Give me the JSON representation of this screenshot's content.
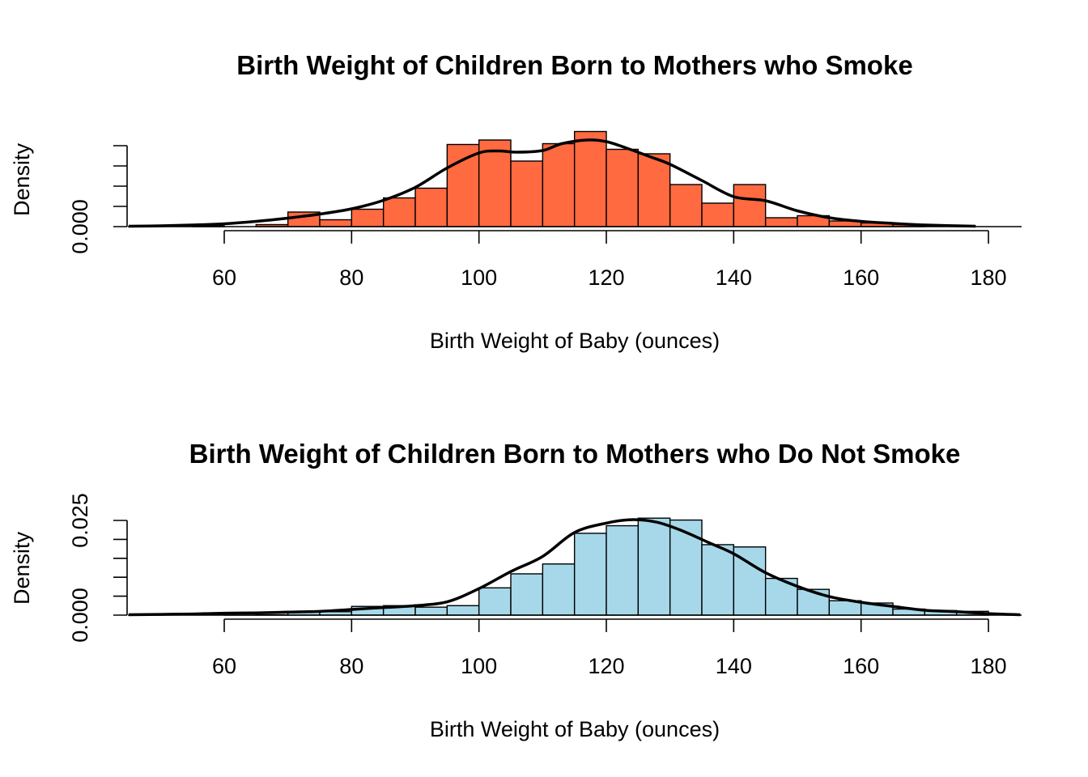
{
  "chart_data": [
    {
      "type": "bar",
      "title": "Birth Weight of Children Born to Mothers who Smoke",
      "xlabel": "Birth Weight of Baby (ounces)",
      "ylabel": "Density",
      "fill_color": "#FF6A40",
      "x_ticks": [
        60,
        80,
        100,
        120,
        140,
        160,
        180
      ],
      "y_tick_labels": [
        "0.000"
      ],
      "y_ticks": [
        0,
        0.005,
        0.01,
        0.015,
        0.02
      ],
      "xlim": [
        45,
        180
      ],
      "ylim": [
        0,
        0.02
      ],
      "bin_edges": [
        55,
        60,
        65,
        70,
        75,
        80,
        85,
        90,
        95,
        100,
        105,
        110,
        115,
        120,
        125,
        130,
        135,
        140,
        145,
        150,
        155,
        160,
        165,
        170,
        175
      ],
      "values": [
        0.0002,
        0,
        0.0005,
        0.0036,
        0.0017,
        0.0043,
        0.0071,
        0.0095,
        0.0203,
        0.0214,
        0.0162,
        0.0205,
        0.0235,
        0.0191,
        0.018,
        0.0104,
        0.0058,
        0.0104,
        0.0022,
        0.0027,
        0.0014,
        0.0009,
        0.0005,
        0,
        0.0002
      ],
      "density": {
        "x": [
          45,
          50,
          55,
          60,
          65,
          70,
          75,
          80,
          85,
          90,
          95,
          100,
          103,
          106,
          110,
          113,
          117,
          120,
          123,
          127,
          130,
          135,
          140,
          145,
          150,
          155,
          160,
          165,
          170,
          178
        ],
        "y": [
          0.0001,
          0.0002,
          0.0004,
          0.0007,
          0.0013,
          0.0021,
          0.0031,
          0.0044,
          0.0065,
          0.0097,
          0.0145,
          0.0182,
          0.0187,
          0.0184,
          0.0188,
          0.0205,
          0.0214,
          0.021,
          0.0195,
          0.0172,
          0.0154,
          0.0114,
          0.0074,
          0.0064,
          0.0039,
          0.0022,
          0.0013,
          0.0008,
          0.0004,
          0.0001
        ]
      }
    },
    {
      "type": "bar",
      "title": "Birth Weight of Children Born to Mothers who Do Not Smoke",
      "xlabel": "Birth Weight of Baby (ounces)",
      "ylabel": "Density",
      "fill_color": "#A6D8EA",
      "x_ticks": [
        60,
        80,
        100,
        120,
        140,
        160,
        180
      ],
      "y_tick_labels": [
        "0.000",
        "0.025"
      ],
      "y_ticks": [
        0,
        0.005,
        0.01,
        0.015,
        0.02,
        0.025
      ],
      "xlim": [
        45,
        180
      ],
      "ylim": [
        0,
        0.025
      ],
      "bin_edges": [
        55,
        60,
        65,
        70,
        75,
        80,
        85,
        90,
        95,
        100,
        105,
        110,
        115,
        120,
        125,
        130,
        135,
        140,
        145,
        150,
        155,
        160,
        165,
        170,
        175,
        180
      ],
      "values": [
        0,
        0.0007,
        0.0001,
        0.0009,
        0.0009,
        0.0023,
        0.0025,
        0.0021,
        0.0025,
        0.0072,
        0.0109,
        0.0135,
        0.0216,
        0.0236,
        0.0256,
        0.0251,
        0.0186,
        0.018,
        0.0097,
        0.0068,
        0.0038,
        0.0032,
        0.0016,
        0.0012,
        0.001,
        0.0003
      ],
      "density": {
        "x": [
          45,
          50,
          55,
          60,
          65,
          70,
          75,
          80,
          85,
          90,
          95,
          100,
          105,
          110,
          115,
          120,
          124,
          128,
          132,
          136,
          140,
          145,
          150,
          155,
          160,
          165,
          170,
          175,
          180,
          185
        ],
        "y": [
          0.0001,
          0.0002,
          0.0003,
          0.0005,
          0.0006,
          0.0008,
          0.001,
          0.0015,
          0.002,
          0.0025,
          0.0035,
          0.007,
          0.0115,
          0.0155,
          0.0218,
          0.0243,
          0.0252,
          0.0245,
          0.0222,
          0.0192,
          0.0162,
          0.0112,
          0.0076,
          0.0049,
          0.0034,
          0.0023,
          0.0013,
          0.0009,
          0.0004,
          0.0001
        ]
      }
    }
  ]
}
